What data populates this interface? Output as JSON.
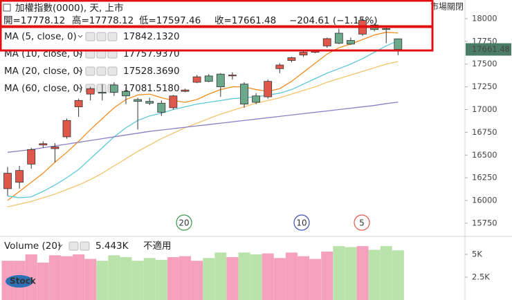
{
  "header": {
    "title": "加權指數(0000), 天, 上市",
    "status": "市場關閉",
    "ohlc": [
      "開=17778.12",
      "高=17778.12",
      "低=17597.46",
      "收=17661.48",
      "−204.61 (−1.15%)"
    ]
  },
  "logo": "Stock",
  "chart_data": [
    {
      "type": "candlestick",
      "up_color": "#e0584c",
      "down_color": "#6ba98a",
      "open": [
        16130,
        16200,
        16400,
        16610,
        16570,
        16700,
        17030,
        17170,
        17190,
        17270,
        17200,
        17110,
        17090,
        17070,
        17020,
        17200,
        17300,
        17370,
        17390,
        17370,
        17280,
        17150,
        17140,
        17450,
        17540,
        17600,
        17630,
        17700,
        17840,
        17760,
        17830,
        17930,
        17890,
        17778.12
      ],
      "high": [
        16370,
        16380,
        16580,
        16650,
        16630,
        16900,
        17120,
        17250,
        17280,
        17300,
        17250,
        17130,
        17130,
        17100,
        17160,
        17230,
        17380,
        17390,
        17400,
        17410,
        17300,
        17180,
        17330,
        17510,
        17580,
        17640,
        17660,
        17790,
        17890,
        17790,
        18010,
        17950,
        17900,
        17778.12
      ],
      "low": [
        16050,
        16130,
        16350,
        16580,
        16420,
        16680,
        16920,
        17100,
        17100,
        17150,
        17060,
        16780,
        17050,
        16930,
        17000,
        17190,
        17290,
        17300,
        17140,
        17330,
        17020,
        17060,
        17120,
        17400,
        17520,
        17580,
        17620,
        17680,
        17720,
        17710,
        17810,
        17860,
        17730,
        17597.46
      ],
      "close": [
        16300,
        16330,
        16560,
        16625,
        16590,
        16880,
        17100,
        17230,
        17180,
        17190,
        17150,
        17090,
        17070,
        16970,
        17150,
        17215,
        17360,
        17310,
        17250,
        17380,
        17060,
        17080,
        17310,
        17490,
        17570,
        17630,
        17650,
        17780,
        17730,
        17720,
        17980,
        17880,
        17880,
        17661.48
      ],
      "ylim": [
        15620,
        18205
      ],
      "yticks": [
        18000,
        17750,
        17500,
        17250,
        17000,
        16750,
        16500,
        16250,
        16000,
        15750
      ],
      "grid": false,
      "series": [
        {
          "name": "MA (5, close, 0)",
          "color": "#f08c1e",
          "value_label": "17842.1320",
          "values": [
            16000,
            16100,
            16200,
            16300,
            16420,
            16530,
            16650,
            16780,
            16900,
            17020,
            17110,
            17160,
            17170,
            17130,
            17100,
            17080,
            17110,
            17170,
            17220,
            17250,
            17250,
            17220,
            17200,
            17230,
            17310,
            17410,
            17510,
            17610,
            17680,
            17720,
            17770,
            17820,
            17850,
            17842.132
          ]
        },
        {
          "name": "MA (10, close, 0)",
          "color": "#5cc8d8",
          "value_label": "17757.9370",
          "values": [
            16050,
            16030,
            16040,
            16100,
            16170,
            16250,
            16340,
            16460,
            16580,
            16700,
            16800,
            16880,
            16930,
            16960,
            17000,
            17030,
            17060,
            17080,
            17100,
            17120,
            17130,
            17140,
            17160,
            17180,
            17220,
            17280,
            17340,
            17400,
            17450,
            17500,
            17560,
            17630,
            17700,
            17757.937
          ]
        },
        {
          "name": "MA (20, close, 0)",
          "color": "#f2c46a",
          "value_label": "17528.3690",
          "values": [
            15930,
            15960,
            15990,
            16030,
            16070,
            16120,
            16170,
            16230,
            16300,
            16380,
            16460,
            16540,
            16610,
            16680,
            16740,
            16800,
            16850,
            16900,
            16950,
            16990,
            17030,
            17070,
            17100,
            17130,
            17170,
            17210,
            17250,
            17300,
            17340,
            17380,
            17420,
            17460,
            17500,
            17528.369
          ]
        },
        {
          "name": "MA (60, close, 0)",
          "color": "#8e7cc3",
          "value_label": "17081.5180",
          "values": [
            16530,
            16545,
            16560,
            16580,
            16600,
            16620,
            16640,
            16660,
            16680,
            16700,
            16720,
            16740,
            16760,
            16775,
            16790,
            16805,
            16820,
            16835,
            16850,
            16865,
            16880,
            16895,
            16910,
            16925,
            16940,
            16955,
            16970,
            16985,
            17000,
            17015,
            17030,
            17045,
            17065,
            17081.518
          ]
        }
      ],
      "annotations": [
        {
          "text": "20",
          "color": "#3a9a4a"
        },
        {
          "text": "10",
          "color": "#3a4fb0"
        },
        {
          "text": "5",
          "color": "#e0584c"
        }
      ]
    },
    {
      "type": "bar",
      "name": "Volume (20)",
      "value_label": "5.443K",
      "value_color": "#3a9a4a",
      "note": "不適用",
      "up_color": "#f5a0bd",
      "down_color": "#b9e3ab",
      "values": [
        4300,
        4300,
        5000,
        4100,
        4900,
        4800,
        5000,
        4500,
        4300,
        4900,
        4700,
        4300,
        4600,
        4400,
        4700,
        4800,
        4300,
        4600,
        5200,
        4700,
        5200,
        5000,
        5100,
        4600,
        5200,
        4800,
        4500,
        5300,
        5900,
        5800,
        5900,
        5500,
        5900,
        5443
      ],
      "ylim": [
        0,
        6740
      ],
      "yticks": [
        {
          "value": 5000,
          "label": "5K"
        },
        {
          "value": 2500,
          "label": "2.5K"
        }
      ]
    }
  ]
}
